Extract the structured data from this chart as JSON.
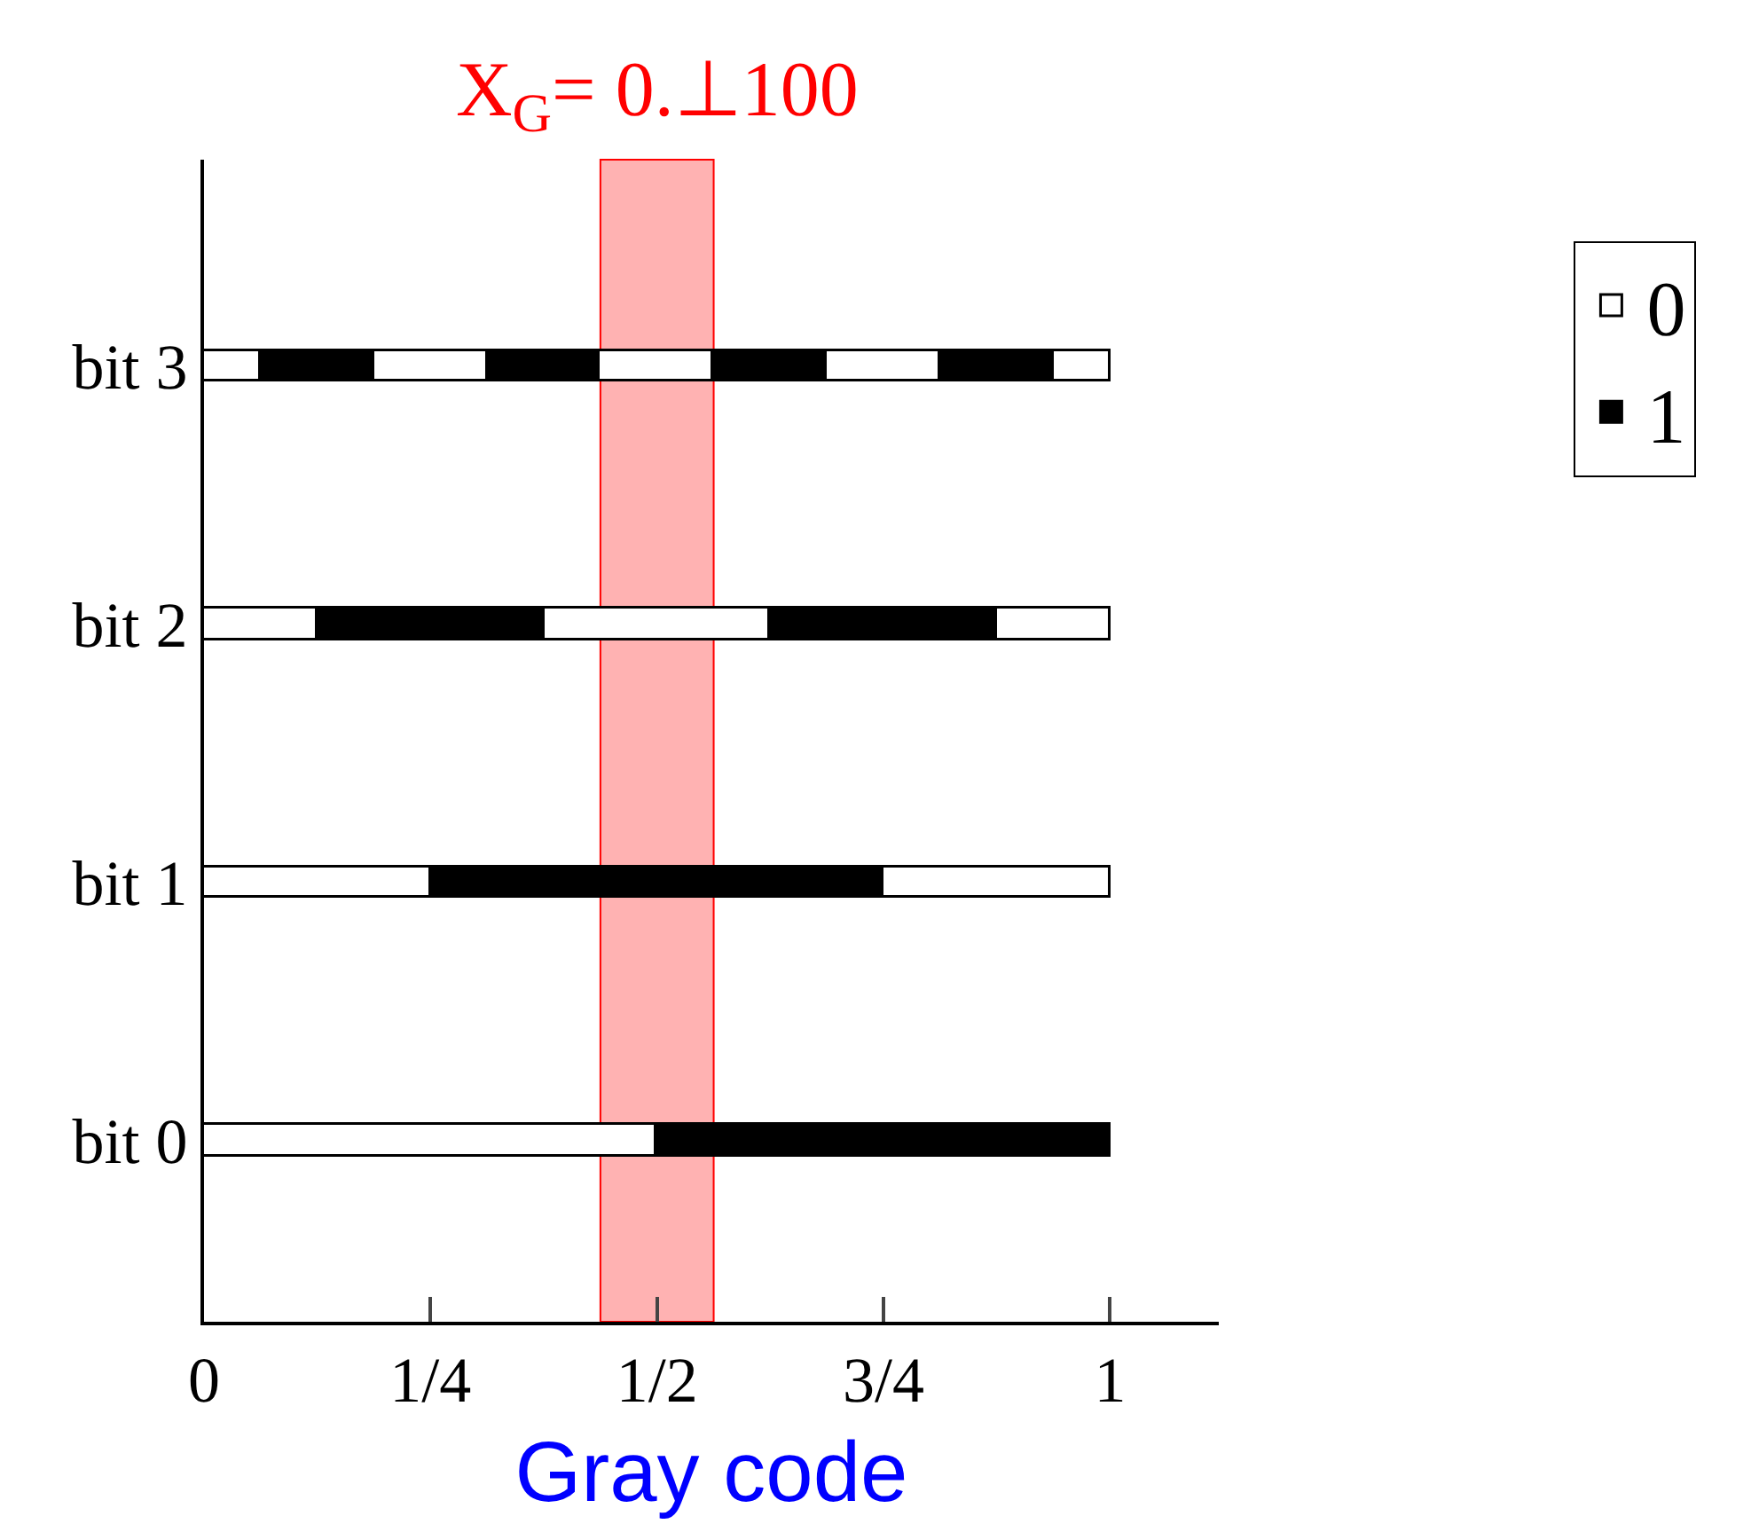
{
  "chart_data": {
    "type": "bar",
    "orientation": "horizontal",
    "stacked": true,
    "xlabel": "Gray code",
    "categories": [
      "bit 3",
      "bit 2",
      "bit 1",
      "bit 0"
    ],
    "series": [
      {
        "name": "0",
        "color": "#ffffff",
        "values": [
          0.0625,
          0.125,
          0.25,
          0.5
        ]
      },
      {
        "name": "1",
        "color": "#000000",
        "values": [
          0.125,
          0.25,
          0.5,
          0.5
        ]
      },
      {
        "color": "#ffffff",
        "values": [
          0.125,
          0.25,
          0.25,
          null
        ]
      },
      {
        "color": "#000000",
        "values": [
          0.125,
          0.25,
          null,
          null
        ]
      },
      {
        "color": "#ffffff",
        "values": [
          0.125,
          0.125,
          null,
          null
        ]
      },
      {
        "color": "#000000",
        "values": [
          0.125,
          null,
          null,
          null
        ]
      },
      {
        "color": "#ffffff",
        "values": [
          0.125,
          null,
          null,
          null
        ]
      },
      {
        "color": "#000000",
        "values": [
          0.125,
          null,
          null,
          null
        ]
      },
      {
        "color": "#ffffff",
        "values": [
          0.0625,
          null,
          null,
          null
        ]
      }
    ],
    "bands": [
      {
        "axis": "x",
        "from": 0.4375,
        "to": 0.5625,
        "label": "X$_{G}$= 0.⊥100",
        "color": "#ff0000"
      }
    ],
    "xlim": [
      0,
      1.12
    ],
    "xticks": [
      {
        "value": 0,
        "label": "0"
      },
      {
        "value": 0.25,
        "label": "1/4"
      },
      {
        "value": 0.5,
        "label": "1/2"
      },
      {
        "value": 0.75,
        "label": "3/4"
      },
      {
        "value": 1,
        "label": "1"
      }
    ],
    "grid": false,
    "legend": "top right"
  }
}
